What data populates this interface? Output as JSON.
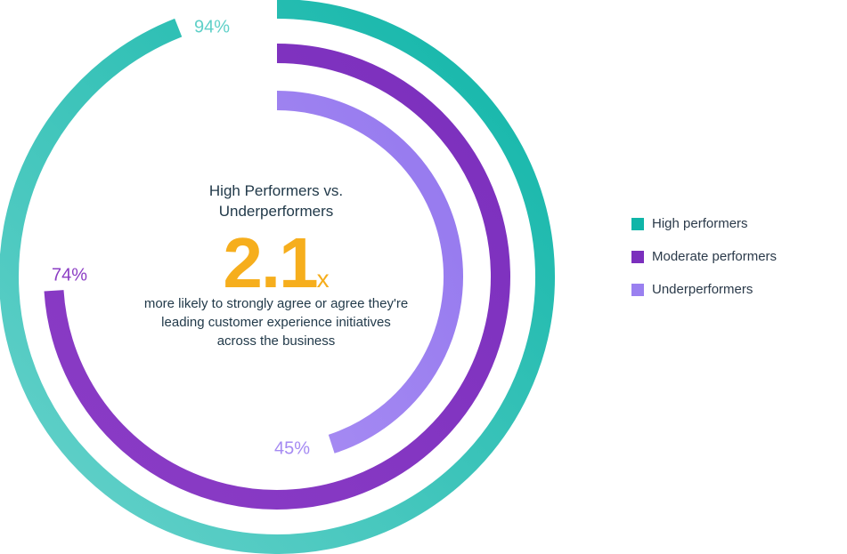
{
  "chart_data": {
    "type": "radial-bar",
    "title": "High Performers vs. Underperformers",
    "series": [
      {
        "name": "High performers",
        "value": 94,
        "label": "94%",
        "color": "#0fb5a8",
        "color_end": "#5fd0c8"
      },
      {
        "name": "Moderate performers",
        "value": 74,
        "label": "74%",
        "color": "#7b2fbd",
        "color_end": "#8b3dc4"
      },
      {
        "name": "Underperformers",
        "value": 45,
        "label": "45%",
        "color": "#9a80f0",
        "color_end": "#a58af2"
      }
    ],
    "callout": {
      "value": "2.1",
      "suffix": "x",
      "text": "more likely to strongly agree or agree they're leading customer experience initiatives across the business",
      "color": "#f6ae1d"
    },
    "legend_position": "right"
  }
}
